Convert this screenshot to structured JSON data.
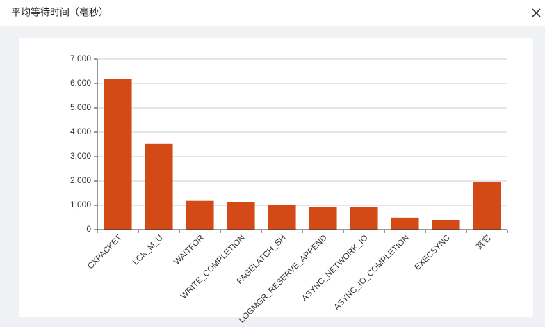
{
  "dialog": {
    "title": "平均等待时间（毫秒）"
  },
  "chart_data": {
    "type": "bar",
    "categories": [
      "CXPACKET",
      "LCK_M_U",
      "WAITFOR",
      "WRITE_COMPLETION",
      "PAGELATCH_SH",
      "LOGMGR_RESERVE_APPEND",
      "ASYNC_NETWORK_IO",
      "ASYNC_IO_COMPLETION",
      "EXECSYNC",
      "其它"
    ],
    "values": [
      6200,
      3520,
      1180,
      1140,
      1030,
      920,
      920,
      490,
      400,
      1950
    ],
    "color": "#d34a17",
    "ylim": [
      0,
      7000
    ],
    "yticks": [
      0,
      {
        "value": 1000,
        "label": "1,000"
      },
      {
        "value": 2000,
        "label": "2,000"
      },
      {
        "value": 3000,
        "label": "3,000"
      },
      {
        "value": 4000,
        "label": "4,000"
      },
      {
        "value": 5000,
        "label": "5,000"
      },
      {
        "value": 6000,
        "label": "6,000"
      },
      {
        "value": 7000,
        "label": "7,000"
      }
    ],
    "grid": true
  }
}
